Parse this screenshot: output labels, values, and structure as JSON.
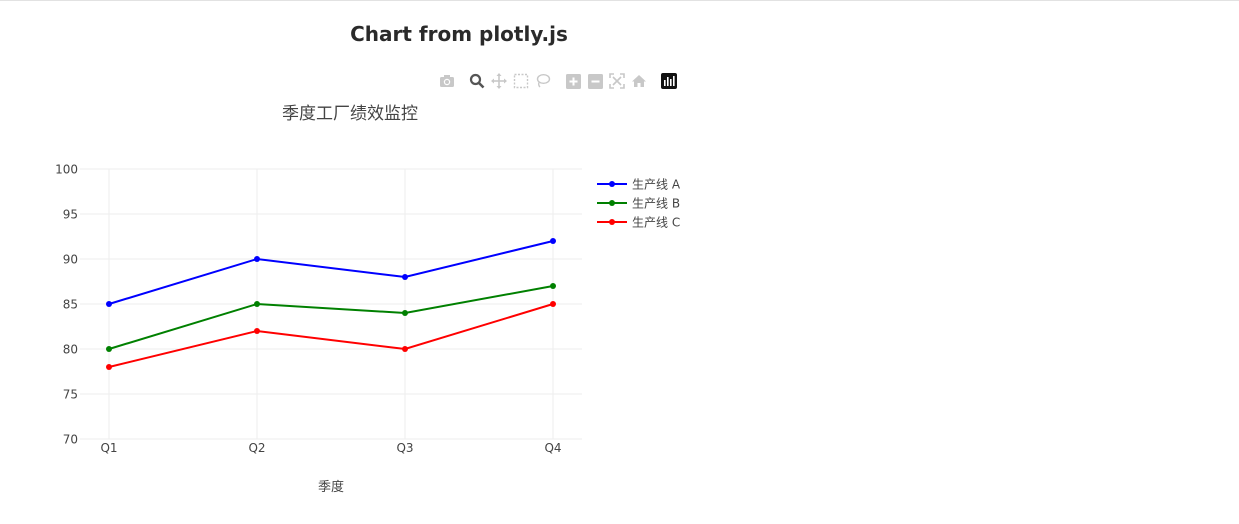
{
  "page": {
    "title": "Chart from plotly.js"
  },
  "modebar": {
    "buttons": [
      {
        "icon": "camera-icon",
        "active": false
      },
      {
        "icon": "zoom-icon",
        "active": true
      },
      {
        "icon": "pan-icon",
        "active": false
      },
      {
        "icon": "box-select-icon",
        "active": false
      },
      {
        "icon": "lasso-select-icon",
        "active": false
      },
      {
        "icon": "zoom-in-icon",
        "active": false
      },
      {
        "icon": "zoom-out-icon",
        "active": false
      },
      {
        "icon": "autoscale-icon",
        "active": false
      },
      {
        "icon": "reset-axes-icon",
        "active": false
      },
      {
        "icon": "plotly-logo-icon",
        "active": false
      }
    ]
  },
  "chart_data": {
    "type": "line",
    "title": "季度工厂绩效监控",
    "xlabel": "季度",
    "ylabel": "",
    "categories": [
      "Q1",
      "Q2",
      "Q3",
      "Q4"
    ],
    "ylim": [
      70,
      100
    ],
    "yticks": [
      70,
      75,
      80,
      85,
      90,
      95,
      100
    ],
    "grid": true,
    "legend_position": "top-right",
    "series": [
      {
        "name": "生产线 A",
        "values": [
          85,
          90,
          88,
          92
        ],
        "color": "#0000ff"
      },
      {
        "name": "生产线 B",
        "values": [
          80,
          85,
          84,
          87
        ],
        "color": "#008000"
      },
      {
        "name": "生产线 C",
        "values": [
          78,
          82,
          80,
          85
        ],
        "color": "#ff0000"
      }
    ]
  }
}
